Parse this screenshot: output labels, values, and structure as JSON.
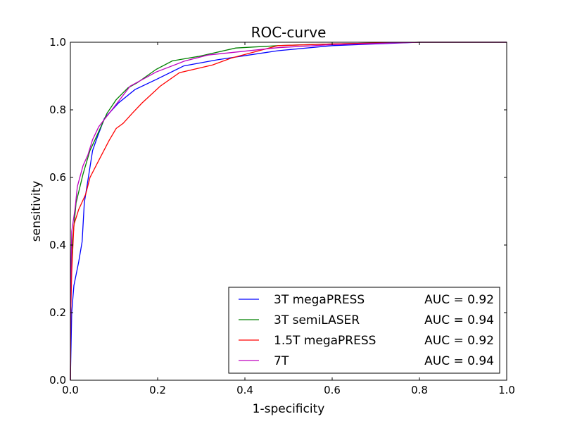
{
  "chart_data": {
    "type": "line",
    "title": "ROC-curve",
    "xlabel": "1-specificity",
    "ylabel": "sensitivity",
    "xlim": [
      0,
      1
    ],
    "ylim": [
      0,
      1
    ],
    "xticks": [
      "0.0",
      "0.2",
      "0.4",
      "0.6",
      "0.8",
      "1.0"
    ],
    "yticks": [
      "0.0",
      "0.2",
      "0.4",
      "0.6",
      "0.8",
      "1.0"
    ],
    "grid": false,
    "legend_position": "lower-right",
    "series": [
      {
        "name": "3T megaPRESS",
        "auc_label": "AUC = 0.92",
        "color": "#0000ff",
        "x": [
          0,
          0.003,
          0.008,
          0.019,
          0.027,
          0.032,
          0.04,
          0.051,
          0.062,
          0.078,
          0.11,
          0.148,
          0.197,
          0.26,
          0.336,
          0.476,
          0.6,
          0.8,
          1.0
        ],
        "y": [
          0,
          0.2,
          0.28,
          0.35,
          0.41,
          0.525,
          0.59,
          0.68,
          0.72,
          0.775,
          0.82,
          0.86,
          0.89,
          0.93,
          0.948,
          0.975,
          0.99,
          1.0,
          1.0
        ]
      },
      {
        "name": "3T semiLASER",
        "auc_label": "AUC = 0.94",
        "color": "#008000",
        "x": [
          0,
          0.001,
          0.003,
          0.013,
          0.029,
          0.045,
          0.056,
          0.084,
          0.105,
          0.132,
          0.153,
          0.197,
          0.234,
          0.293,
          0.379,
          0.476,
          0.6,
          0.8,
          1.0
        ],
        "y": [
          0,
          0.25,
          0.385,
          0.525,
          0.61,
          0.68,
          0.71,
          0.79,
          0.83,
          0.865,
          0.88,
          0.92,
          0.945,
          0.958,
          0.983,
          0.99,
          0.995,
          1.0,
          1.0
        ]
      },
      {
        "name": "1.5T megaPRESS",
        "auc_label": "AUC = 0.92",
        "color": "#ff0000",
        "x": [
          0,
          0.001,
          0.003,
          0.008,
          0.019,
          0.035,
          0.045,
          0.067,
          0.089,
          0.105,
          0.121,
          0.142,
          0.164,
          0.206,
          0.25,
          0.326,
          0.368,
          0.476,
          0.6,
          0.8,
          1.0
        ],
        "y": [
          0,
          0.2,
          0.32,
          0.46,
          0.505,
          0.55,
          0.6,
          0.655,
          0.71,
          0.745,
          0.76,
          0.79,
          0.82,
          0.87,
          0.91,
          0.933,
          0.953,
          0.99,
          0.995,
          1.0,
          1.0
        ]
      },
      {
        "name": "7T",
        "auc_label": "AUC = 0.94",
        "color": "#bf00bf",
        "x": [
          0,
          0.001,
          0.003,
          0.011,
          0.016,
          0.029,
          0.04,
          0.051,
          0.065,
          0.077,
          0.1,
          0.137,
          0.197,
          0.261,
          0.315,
          0.476,
          0.6,
          0.8,
          1.0
        ],
        "y": [
          0,
          0.3,
          0.44,
          0.51,
          0.573,
          0.635,
          0.666,
          0.712,
          0.75,
          0.77,
          0.808,
          0.87,
          0.912,
          0.944,
          0.962,
          0.984,
          0.993,
          1.0,
          1.0
        ]
      }
    ]
  }
}
